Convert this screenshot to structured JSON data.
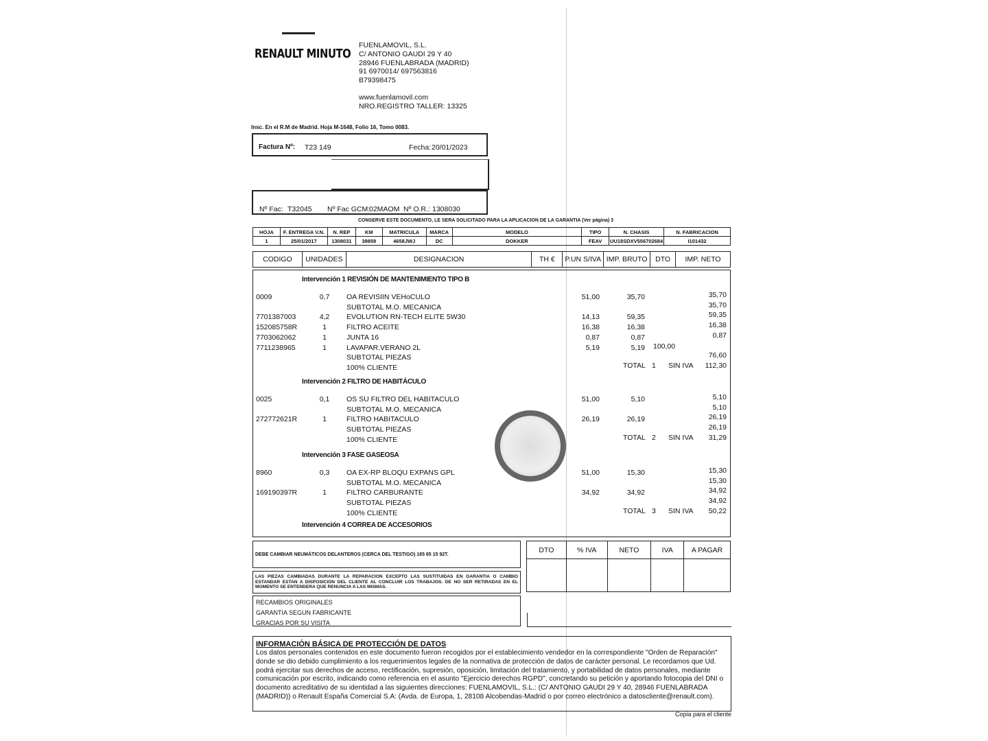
{
  "header": {
    "logo": "RENAULT MINUTO",
    "company": [
      "FUENLAMOVIL, S.L.",
      "C/ ANTONIO GAUDI 29 Y 40",
      "28946 FUENLABRADA (MADRID)",
      "91 6970014/ 697563816",
      "B79398475"
    ],
    "website": "www.fuenlamovil.com",
    "registro": "NRO.REGISTRO TALLER:  13325",
    "inscripcion": "Insc. En el R.M de Madrid. Hoja M-1648, Folio 16, Tomo 0083."
  },
  "invoice": {
    "factura_label": "Factura Nº:",
    "factura_value": "T23 149",
    "fecha_label": "Fecha:",
    "fecha_value": "20/01/2023",
    "nfac_label": "Nº Fac:",
    "nfac_value": "T32045",
    "gcm_label": "Nº Fac GCM:",
    "gcm_value": "02MAOM",
    "or_label": "Nº O.R.:",
    "or_value": "1308030"
  },
  "warranty_note": "CONSERVE ESTE DOCUMENTO, LE SERA SOLICITADO PARA LA APLICACION DE LA GARANTIA (Ver página)  3",
  "vehicle": {
    "headers": [
      "HOJA",
      "F. ENTREGA V.N.",
      "N. REP",
      "KM",
      "MATRICULA",
      "MARCA",
      "MODELO",
      "TIPO",
      "N. CHASIS",
      "N. FABRICACION"
    ],
    "values": [
      "1",
      "25/01/2017",
      "1308031",
      "39859",
      "4658JWJ",
      "DC",
      "DOKKER",
      "FEAV",
      "UU18SDXV556702684",
      "I101432"
    ]
  },
  "columns": [
    "CODIGO",
    "UNIDADES",
    "DESIGNACION",
    "TH  €",
    "P.UN S/IVA",
    "IMP. BRUTO",
    "DTO",
    "IMP. NETO"
  ],
  "sections": [
    {
      "title": "Intervención  1  REVISIÓN DE MANTENIMIENTO TIPO B",
      "rows": [
        {
          "code": "0009",
          "units": "0,7",
          "desc": "OA REVISIIN VEHoCULO",
          "pun": "51,00",
          "bruto": "35,70",
          "dto": "",
          "neto": "35,70"
        },
        {
          "code": "",
          "units": "",
          "desc": "SUBTOTAL  M.O. MECANICA",
          "pun": "",
          "bruto": "",
          "dto": "",
          "neto": "35,70"
        },
        {
          "code": "7701387003",
          "units": "4,2",
          "desc": "EVOLUTION RN-TECH ELITE 5W30",
          "pun": "14,13",
          "bruto": "59,35",
          "dto": "",
          "neto": "59,35"
        },
        {
          "code": "152085758R",
          "units": "1",
          "desc": "FILTRO ACEITE",
          "pun": "16,38",
          "bruto": "16,38",
          "dto": "",
          "neto": "16,38"
        },
        {
          "code": "7703062062",
          "units": "1",
          "desc": "JUNTA 16",
          "pun": "0,87",
          "bruto": "0,87",
          "dto": "",
          "neto": "0,87"
        },
        {
          "code": "7711238965",
          "units": "1",
          "desc": "LAVAPAR.VERANO 2L",
          "pun": "5,19",
          "bruto": "5,19",
          "dto": "100,00",
          "neto": ""
        },
        {
          "code": "",
          "units": "",
          "desc": "SUBTOTAL  PIEZAS",
          "pun": "",
          "bruto": "",
          "dto": "",
          "neto": "76,60"
        },
        {
          "code": "",
          "units": "",
          "desc": "100% CLIENTE",
          "pun": "",
          "bruto": "",
          "dto": "",
          "neto": ""
        }
      ],
      "total": {
        "label": "TOTAL",
        "num": "1",
        "siniva": "SIN IVA",
        "value": "112,30"
      }
    },
    {
      "title": "Intervención  2  FILTRO DE HABITÁCULO",
      "rows": [
        {
          "code": "0025",
          "units": "0,1",
          "desc": "OS SU FILTRO DEL HABITACULO",
          "pun": "51,00",
          "bruto": "5,10",
          "dto": "",
          "neto": "5,10"
        },
        {
          "code": "",
          "units": "",
          "desc": "SUBTOTAL  M.O. MECANICA",
          "pun": "",
          "bruto": "",
          "dto": "",
          "neto": "5,10"
        },
        {
          "code": "272772621R",
          "units": "1",
          "desc": "FILTRO HABITACULO",
          "pun": "26,19",
          "bruto": "26,19",
          "dto": "",
          "neto": "26,19"
        },
        {
          "code": "",
          "units": "",
          "desc": "SUBTOTAL  PIEZAS",
          "pun": "",
          "bruto": "",
          "dto": "",
          "neto": "26,19"
        },
        {
          "code": "",
          "units": "",
          "desc": "100% CLIENTE",
          "pun": "",
          "bruto": "",
          "dto": "",
          "neto": ""
        }
      ],
      "total": {
        "label": "TOTAL",
        "num": "2",
        "siniva": "SIN IVA",
        "value": "31,29"
      }
    },
    {
      "title": "Intervención  3  FASE GASEOSA",
      "rows": [
        {
          "code": "8960",
          "units": "0,3",
          "desc": "OA EX-RP BLOQU EXPANS GPL",
          "pun": "51,00",
          "bruto": "15,30",
          "dto": "",
          "neto": "15,30"
        },
        {
          "code": "",
          "units": "",
          "desc": "SUBTOTAL  M.O. MECANICA",
          "pun": "",
          "bruto": "",
          "dto": "",
          "neto": "15,30"
        },
        {
          "code": "169190397R",
          "units": "1",
          "desc": "FILTRO CARBURANTE",
          "pun": "34,92",
          "bruto": "34,92",
          "dto": "",
          "neto": "34,92"
        },
        {
          "code": "",
          "units": "",
          "desc": "SUBTOTAL  PIEZAS",
          "pun": "",
          "bruto": "",
          "dto": "",
          "neto": "34,92"
        },
        {
          "code": "",
          "units": "",
          "desc": "100% CLIENTE",
          "pun": "",
          "bruto": "",
          "dto": "",
          "neto": ""
        }
      ],
      "total": {
        "label": "TOTAL",
        "num": "3",
        "siniva": "SIN IVA",
        "value": "50,22"
      }
    },
    {
      "title": "Intervención  4  CORREA DE ACCESORIOS",
      "rows": []
    }
  ],
  "notes": {
    "tyres": "DEBE CAMBIAR NEUMÁTICOS DELANTEROS (CERCA DEL TESTIGO) 185 65 15 92T.",
    "parts": "LAS PIEZAS CAMBIADAS DURANTE LA REPARACION EXCEPTO LAS SUSTITUIDAS EN GARANTIA O CAMBIO ESTANDAR ESTAN A DISPOSICION DEL CLIENTE AL CONCLUIR LOS TRABAJOS. DE NO SER RETIRADAS EN EL MOMENTO SE ENTENDERA QUE RENUNCIA A LAS MISMAS.",
    "lines": [
      "RECAMBIOS ORIGINALES",
      "GARANTIA SEGUN FABRICANTE",
      "GRACIAS POR SU VISITA"
    ]
  },
  "totals_headers": [
    "DTO",
    "% IVA",
    "NETO",
    "IVA",
    "A PAGAR"
  ],
  "privacy": {
    "title": "INFORMACIÓN BÁSICA DE PROTECCIÓN DE DATOS",
    "body": "Los datos personales contenidos en este documento fueron recogidos por el establecimiento vendedor en la correspondiente \"Orden de Reparación\" donde se dio debido cumplimiento a los requerimientos legales de la normativa de protección de datos de carácter personal. Le recordamos que Ud. podrá ejercitar sus derechos de acceso, rectificación, supresión, oposición, limitación del tratamiento, y portabilidad de datos personales, mediante comunicación por escrito, indicando como referencia en el asunto \"Ejercicio derechos RGPD\", concretando su petición y aportando fotocopia del DNI o documento acreditativo de su identidad a las siguientes direcciones: FUENLAMOVIL, S.L.: (C/ ANTONIO GAUDI 29 Y 40, 28946 FUENLABRADA (MADRID)) o Renault España Comercial S.A: (Avda. de Europa, 1, 28108 Alcobendas-Madrid o por correo electrónico a datoscliente@renault.com)."
  },
  "footer": "Copia para el cliente"
}
